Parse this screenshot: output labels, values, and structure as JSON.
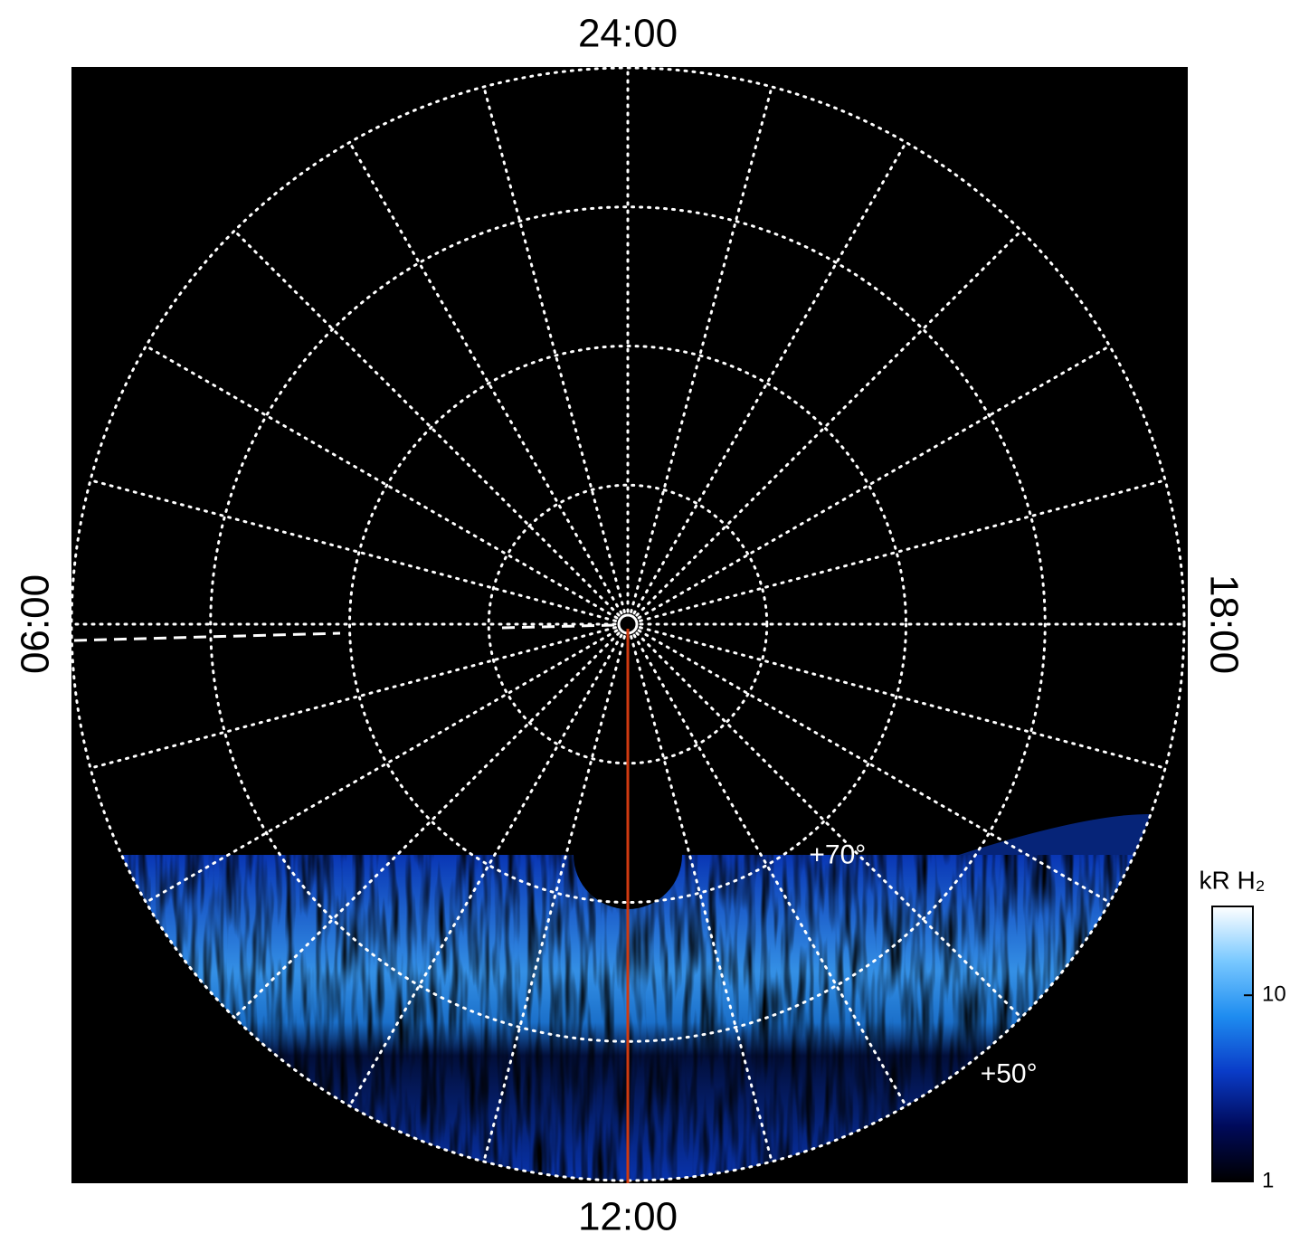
{
  "chart_data": {
    "type": "polar-image",
    "hour_labels": {
      "top": "24:00",
      "bottom": "12:00",
      "left": "06:00",
      "right": "18:00"
    },
    "rlim": [
      90,
      50
    ],
    "latitude_circles": [
      80,
      70,
      60,
      50
    ],
    "meridian_step_deg": 15,
    "latitude_labels": [
      {
        "value": 70,
        "label": "+70°"
      },
      {
        "value": 50,
        "label": "+50°"
      }
    ],
    "colorbar": {
      "label": "kR H₂",
      "scale": "log",
      "clim": [
        1,
        30
      ],
      "ticks": [
        1,
        10
      ],
      "colors": [
        "#000000",
        "#000a5a",
        "#0a3cc8",
        "#1e8cf0",
        "#78c8ff",
        "#ffffff"
      ]
    },
    "meridian_line_color": "#d03a10"
  }
}
